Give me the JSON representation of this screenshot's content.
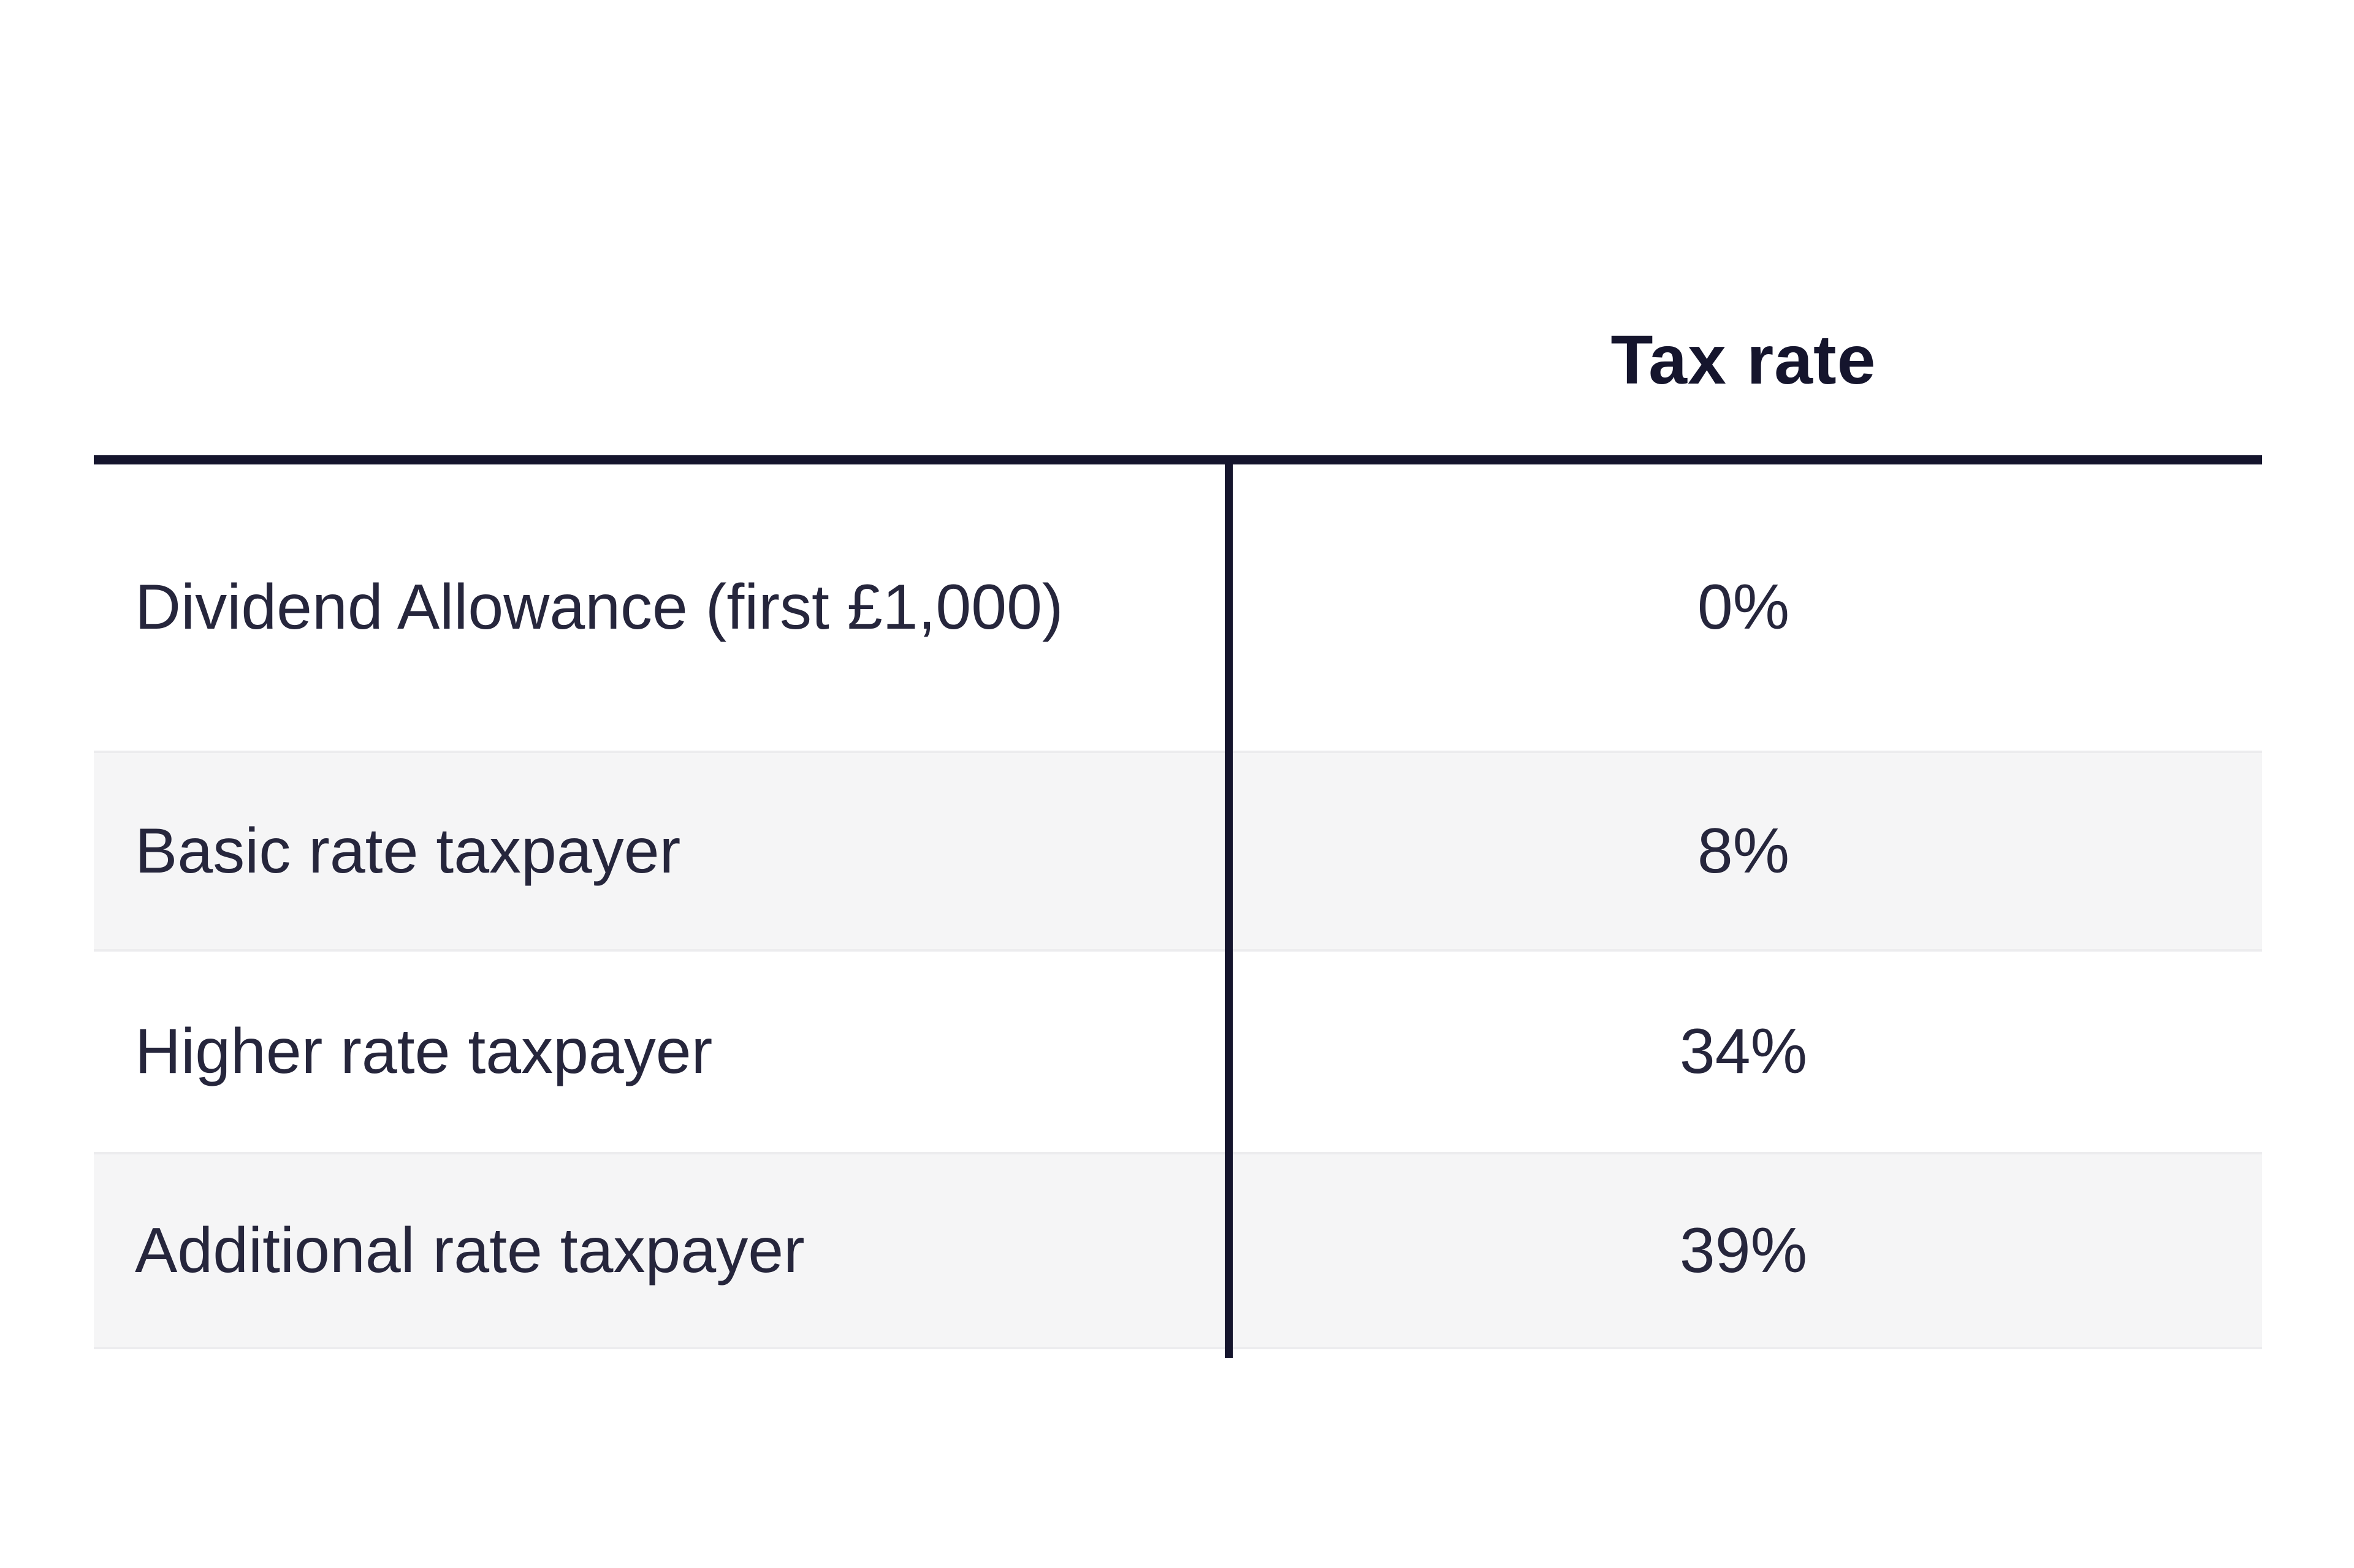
{
  "table": {
    "header": {
      "value_column_label": "Tax rate"
    },
    "rows": [
      {
        "label": "Dividend Allowance (first £1,000)",
        "value": "0%"
      },
      {
        "label": "Basic rate taxpayer",
        "value": "8%"
      },
      {
        "label": "Higher rate taxpayer",
        "value": "34%"
      },
      {
        "label": "Additional rate taxpayer",
        "value": "39%"
      }
    ]
  },
  "colors": {
    "accent_navy": "#15152d",
    "body_text": "#26263c",
    "alt_row_bg": "#f5f5f6",
    "row_separator": "#ececee",
    "page_bg": "#ffffff"
  }
}
